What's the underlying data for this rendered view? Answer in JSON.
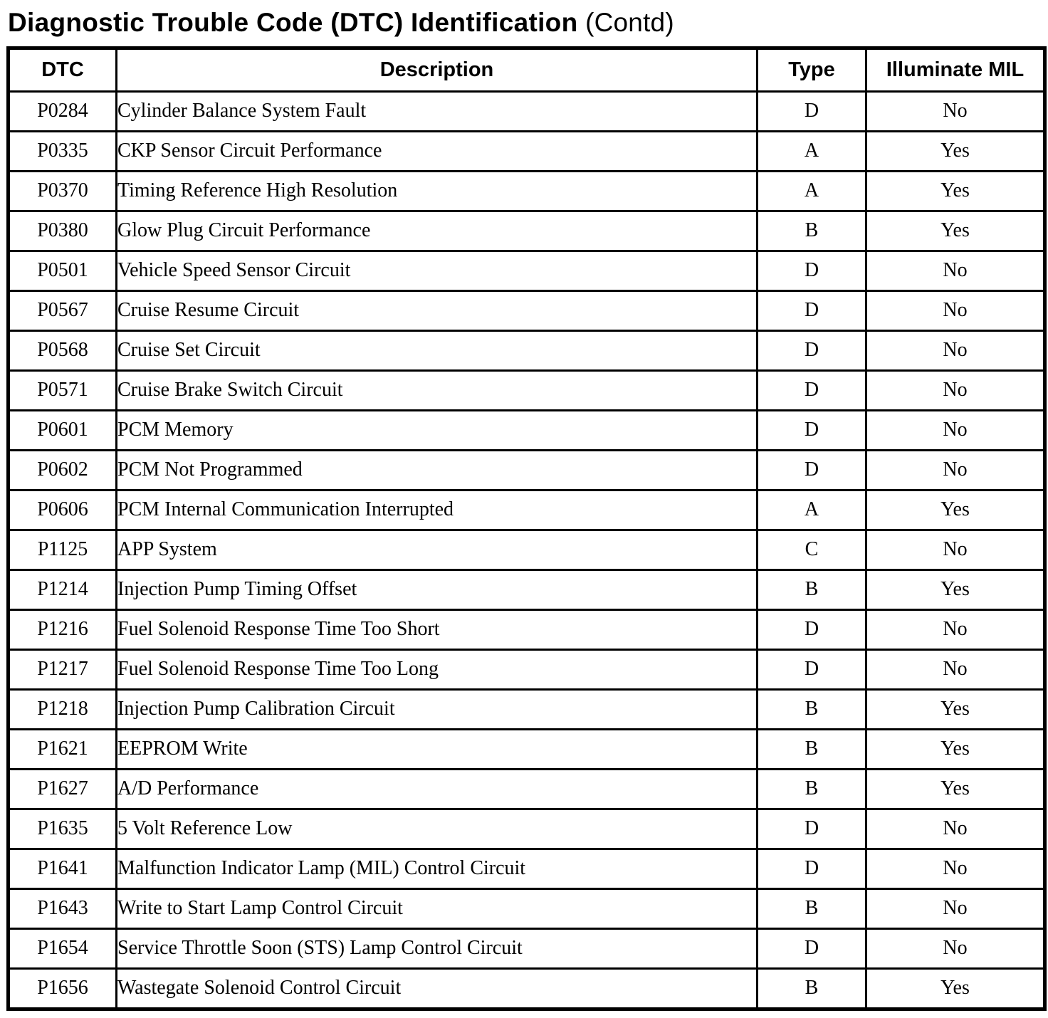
{
  "page_title": {
    "main": "Diagnostic Trouble Code (DTC) Identification",
    "suffix": "(Contd)"
  },
  "table": {
    "columns": [
      {
        "key": "dtc",
        "label": "DTC"
      },
      {
        "key": "description",
        "label": "Description"
      },
      {
        "key": "type",
        "label": "Type"
      },
      {
        "key": "illuminate_mil",
        "label": "Illuminate MIL"
      }
    ],
    "rows": [
      {
        "dtc": "P0284",
        "description": "Cylinder Balance System Fault",
        "type": "D",
        "illuminate_mil": "No"
      },
      {
        "dtc": "P0335",
        "description": "CKP Sensor Circuit Performance",
        "type": "A",
        "illuminate_mil": "Yes"
      },
      {
        "dtc": "P0370",
        "description": "Timing Reference High Resolution",
        "type": "A",
        "illuminate_mil": "Yes"
      },
      {
        "dtc": "P0380",
        "description": "Glow Plug Circuit Performance",
        "type": "B",
        "illuminate_mil": "Yes"
      },
      {
        "dtc": "P0501",
        "description": "Vehicle Speed Sensor Circuit",
        "type": "D",
        "illuminate_mil": "No"
      },
      {
        "dtc": "P0567",
        "description": "Cruise Resume Circuit",
        "type": "D",
        "illuminate_mil": "No"
      },
      {
        "dtc": "P0568",
        "description": "Cruise Set Circuit",
        "type": "D",
        "illuminate_mil": "No"
      },
      {
        "dtc": "P0571",
        "description": "Cruise Brake Switch Circuit",
        "type": "D",
        "illuminate_mil": "No"
      },
      {
        "dtc": "P0601",
        "description": "PCM Memory",
        "type": "D",
        "illuminate_mil": "No"
      },
      {
        "dtc": "P0602",
        "description": "PCM Not Programmed",
        "type": "D",
        "illuminate_mil": "No"
      },
      {
        "dtc": "P0606",
        "description": "PCM Internal Communication Interrupted",
        "type": "A",
        "illuminate_mil": "Yes"
      },
      {
        "dtc": "P1125",
        "description": "APP System",
        "type": "C",
        "illuminate_mil": "No"
      },
      {
        "dtc": "P1214",
        "description": "Injection Pump Timing Offset",
        "type": "B",
        "illuminate_mil": "Yes"
      },
      {
        "dtc": "P1216",
        "description": "Fuel Solenoid Response Time Too Short",
        "type": "D",
        "illuminate_mil": "No"
      },
      {
        "dtc": "P1217",
        "description": "Fuel Solenoid Response Time Too Long",
        "type": "D",
        "illuminate_mil": "No"
      },
      {
        "dtc": "P1218",
        "description": "Injection Pump Calibration Circuit",
        "type": "B",
        "illuminate_mil": "Yes"
      },
      {
        "dtc": "P1621",
        "description": "EEPROM Write",
        "type": "B",
        "illuminate_mil": "Yes"
      },
      {
        "dtc": "P1627",
        "description": "A/D Performance",
        "type": "B",
        "illuminate_mil": "Yes"
      },
      {
        "dtc": "P1635",
        "description": "5 Volt Reference Low",
        "type": "D",
        "illuminate_mil": "No"
      },
      {
        "dtc": "P1641",
        "description": "Malfunction Indicator Lamp (MIL) Control Circuit",
        "type": "D",
        "illuminate_mil": "No"
      },
      {
        "dtc": "P1643",
        "description": "Write to Start Lamp Control Circuit",
        "type": "B",
        "illuminate_mil": "No"
      },
      {
        "dtc": "P1654",
        "description": "Service Throttle Soon (STS) Lamp Control Circuit",
        "type": "D",
        "illuminate_mil": "No"
      },
      {
        "dtc": "P1656",
        "description": "Wastegate Solenoid Control Circuit",
        "type": "B",
        "illuminate_mil": "Yes"
      }
    ]
  }
}
